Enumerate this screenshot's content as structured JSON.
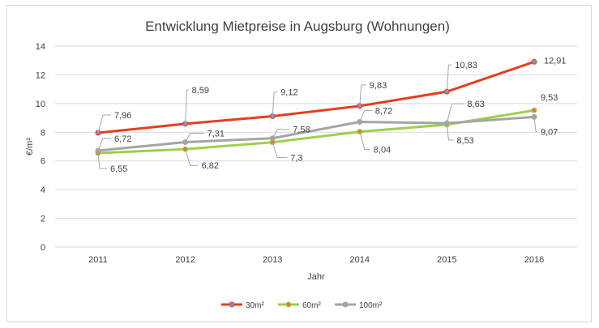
{
  "chart_data": {
    "type": "line",
    "title": "Entwicklung Mietpreise in Augsburg (Wohnungen)",
    "xlabel": "Jahr",
    "ylabel": "€/m²",
    "categories": [
      "2011",
      "2012",
      "2013",
      "2014",
      "2015",
      "2016"
    ],
    "ylim": [
      0,
      14
    ],
    "yticks": [
      "0",
      "2",
      "4",
      "6",
      "8",
      "10",
      "12",
      "14"
    ],
    "grid": true,
    "legend": "bottom",
    "series": [
      {
        "name": "30m²",
        "color": "#e2401d",
        "marker_color": "#7a94c8",
        "values": [
          7.96,
          8.59,
          9.12,
          9.83,
          10.83,
          12.91
        ],
        "labels": [
          "7,96",
          "8,59",
          "9,12",
          "9,83",
          "10,83",
          "12,91"
        ]
      },
      {
        "name": "60m²",
        "color": "#9dcf4c",
        "marker_color": "#e07b39",
        "values": [
          6.55,
          6.82,
          7.3,
          8.04,
          8.53,
          9.53
        ],
        "labels": [
          "6,55",
          "6,82",
          "7,3",
          "8,04",
          "8,53",
          "9,53"
        ]
      },
      {
        "name": "100m²",
        "color": "#a5a5a5",
        "marker_color": "#a5a5a5",
        "values": [
          6.72,
          7.31,
          7.58,
          8.72,
          8.63,
          9.07
        ],
        "labels": [
          "6,72",
          "7,31",
          "7,58",
          "8,72",
          "8,63",
          "9,07"
        ]
      }
    ]
  }
}
